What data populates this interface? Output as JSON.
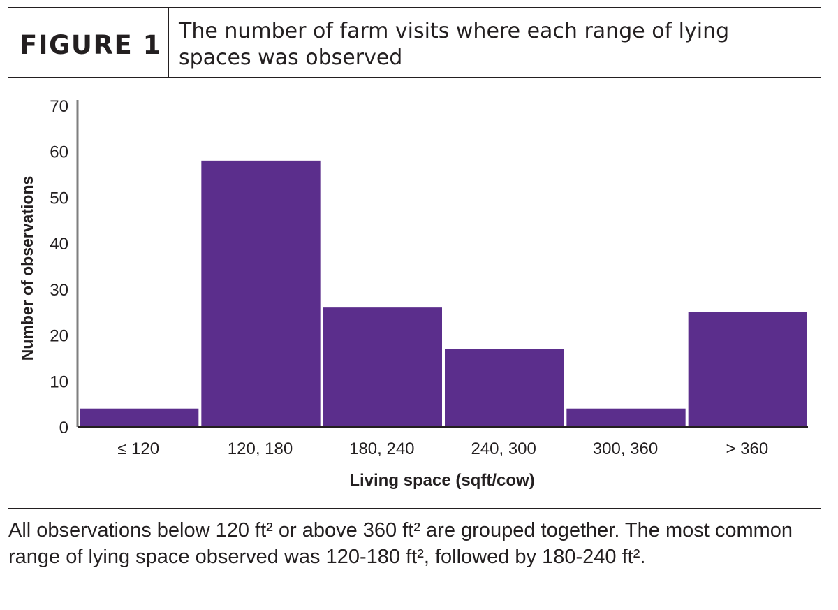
{
  "figure": {
    "label": "FIGURE 1",
    "title": "The number of farm visits where each range of lying spaces was observed",
    "caption": "All observations below 120 ft² or above 360 ft² are grouped together. The most common range of lying space observed was 120-180 ft², followed by 180-240 ft²."
  },
  "colors": {
    "bar": "#5b2e8c",
    "axis": "#7f7f7f",
    "text": "#231f20"
  },
  "chart_data": {
    "type": "bar",
    "categories": [
      "≤ 120",
      "120, 180",
      "180, 240",
      "240, 300",
      "300, 360",
      "> 360"
    ],
    "values": [
      4,
      58,
      26,
      17,
      4,
      25
    ],
    "xlabel": "Living space (sqft/cow)",
    "ylabel": "Number of observations",
    "ylim": [
      0,
      70
    ],
    "yticks": [
      0,
      10,
      20,
      30,
      40,
      50,
      60,
      70
    ],
    "grid": false,
    "legend": "none"
  }
}
